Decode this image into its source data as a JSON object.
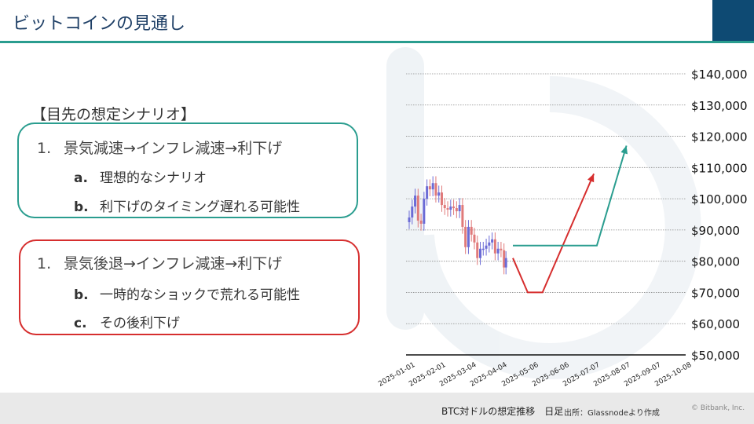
{
  "slide": {
    "title": "ビットコインの見通し",
    "heading": "【目先の想定シナリオ】",
    "scenario1": {
      "num": "1.",
      "text": "景気減速→インフレ減速→利下げ",
      "subs": [
        {
          "num": "a.",
          "text": "理想的なシナリオ"
        },
        {
          "num": "b.",
          "text": "利下げのタイミング遅れる可能性"
        }
      ]
    },
    "scenario2": {
      "num": "1.",
      "text": "景気後退→インフレ減速→利下げ",
      "subs": [
        {
          "num": "b.",
          "text": "一時的なショックで荒れる可能性"
        },
        {
          "num": "c.",
          "text": "その後利下げ"
        }
      ]
    },
    "footer": {
      "chart_title": "BTC対ドルの想定推移　日足",
      "source": "出所：Glassnodeより作成",
      "copyright": "© Bitbank, Inc."
    }
  },
  "colors": {
    "accent": "#2a9d8f",
    "navy": "#0e4a73",
    "title": "#1e3f66",
    "scenario_good": "#2a9d8f",
    "scenario_bad": "#d62e2e",
    "candle_up": "#6b6bd6",
    "candle_down": "#e07a7a"
  },
  "chart_data": {
    "type": "line",
    "title": "",
    "xlabel": "",
    "ylabel": "",
    "x_ticks": [
      "2025-01-01",
      "2025-02-01",
      "2025-03-04",
      "2025-04-04",
      "2025-05-06",
      "2025-06-06",
      "2025-07-07",
      "2025-08-07",
      "2025-09-07",
      "2025-10-08"
    ],
    "y_ticks": [
      "$140,000",
      "$130,000",
      "$120,000",
      "$110,000",
      "$100,000",
      "$90,000",
      "$80,000",
      "$70,000",
      "$60,000",
      "$50,000"
    ],
    "ylim": [
      50000,
      140000
    ],
    "xlim": [
      "2025-01-01",
      "2025-10-08"
    ],
    "grid": "horizontal dotted",
    "series": [
      {
        "style": "candlestick",
        "points": [
          [
            "2025-01-01",
            94000
          ],
          [
            "2025-01-04",
            97500
          ],
          [
            "2025-01-07",
            101000
          ],
          [
            "2025-01-10",
            93000
          ],
          [
            "2025-01-13",
            92000
          ],
          [
            "2025-01-16",
            100000
          ],
          [
            "2025-01-19",
            104000
          ],
          [
            "2025-01-22",
            103000
          ],
          [
            "2025-01-25",
            105000
          ],
          [
            "2025-01-28",
            101000
          ],
          [
            "2025-01-31",
            102000
          ],
          [
            "2025-02-03",
            98000
          ],
          [
            "2025-02-06",
            97000
          ],
          [
            "2025-02-09",
            96500
          ],
          [
            "2025-02-12",
            97500
          ],
          [
            "2025-02-15",
            97000
          ],
          [
            "2025-02-18",
            96000
          ],
          [
            "2025-02-21",
            98000
          ],
          [
            "2025-02-24",
            91000
          ],
          [
            "2025-02-27",
            84500
          ],
          [
            "2025-03-02",
            91000
          ],
          [
            "2025-03-05",
            88500
          ],
          [
            "2025-03-08",
            86000
          ],
          [
            "2025-03-11",
            81000
          ],
          [
            "2025-03-14",
            84000
          ],
          [
            "2025-03-17",
            84000
          ],
          [
            "2025-03-20",
            85000
          ],
          [
            "2025-03-23",
            86000
          ],
          [
            "2025-03-26",
            87000
          ],
          [
            "2025-03-29",
            82500
          ],
          [
            "2025-04-01",
            84000
          ],
          [
            "2025-04-04",
            83500
          ],
          [
            "2025-04-07",
            78000
          ],
          [
            "2025-04-09",
            81000
          ]
        ]
      },
      {
        "style": "projection",
        "color": "#d62e2e",
        "points": [
          [
            "2025-04-16",
            81000
          ],
          [
            "2025-05-01",
            70000
          ],
          [
            "2025-05-16",
            70000
          ],
          [
            "2025-07-07",
            108000
          ]
        ]
      },
      {
        "style": "projection",
        "color": "#2a9d8f",
        "points": [
          [
            "2025-04-16",
            85000
          ],
          [
            "2025-07-10",
            85000
          ],
          [
            "2025-08-09",
            117000
          ]
        ]
      }
    ]
  }
}
